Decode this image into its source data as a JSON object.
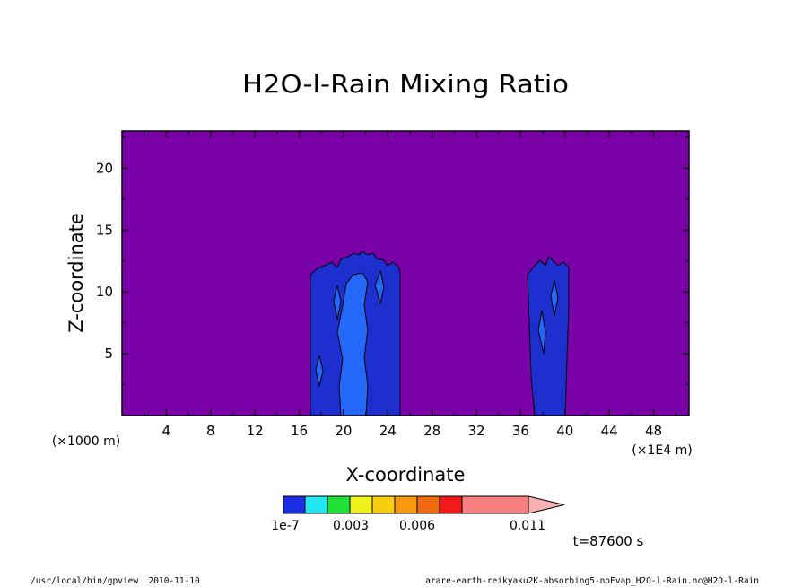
{
  "chart_data": {
    "type": "heatmap",
    "title": "H2O-l-Rain Mixing Ratio",
    "xlabel": "X-coordinate",
    "ylabel": "Z-coordinate",
    "x_unit_left": "(×1000 m)",
    "x_unit_right": "(×1E4 m)",
    "xlim": [
      0,
      51.2
    ],
    "ylim": [
      0,
      23
    ],
    "x_ticks": [
      4,
      8,
      12,
      16,
      20,
      24,
      28,
      32,
      36,
      40,
      44,
      48
    ],
    "y_ticks": [
      5,
      10,
      15,
      20
    ],
    "background_color": "#7a00a8",
    "colorbar": {
      "colors": [
        "#1a2ee6",
        "#22e6f0",
        "#22e03a",
        "#f0f01a",
        "#f8cc10",
        "#f89a10",
        "#f06a10",
        "#f01a1a",
        "#f88080",
        "#f8b0b0"
      ],
      "tick_labels": [
        "1e-7",
        "0.003",
        "0.006",
        "0.011"
      ]
    },
    "regions": [
      {
        "name": "column-1-outer",
        "level": "1e-7",
        "color": "#1e2fd0",
        "x_range": [
          17,
          25.2
        ],
        "z_top": 13.2
      },
      {
        "name": "column-1-core",
        "level": "0.003",
        "color": "#2468f8",
        "x_range": [
          19.6,
          22.2
        ],
        "z_top": 11.8
      },
      {
        "name": "column-2-outer",
        "level": "1e-7",
        "color": "#1e2fd0",
        "x_range": [
          36.4,
          40.2
        ],
        "z_top": 12.8
      }
    ],
    "time_label": "t=87600 s"
  },
  "footer": {
    "left": "/usr/local/bin/gpview  2010-11-10",
    "right": "arare-earth-reikyaku2K-absorbing5-noEvap_H2O-l-Rain.nc@H2O-l-Rain"
  }
}
